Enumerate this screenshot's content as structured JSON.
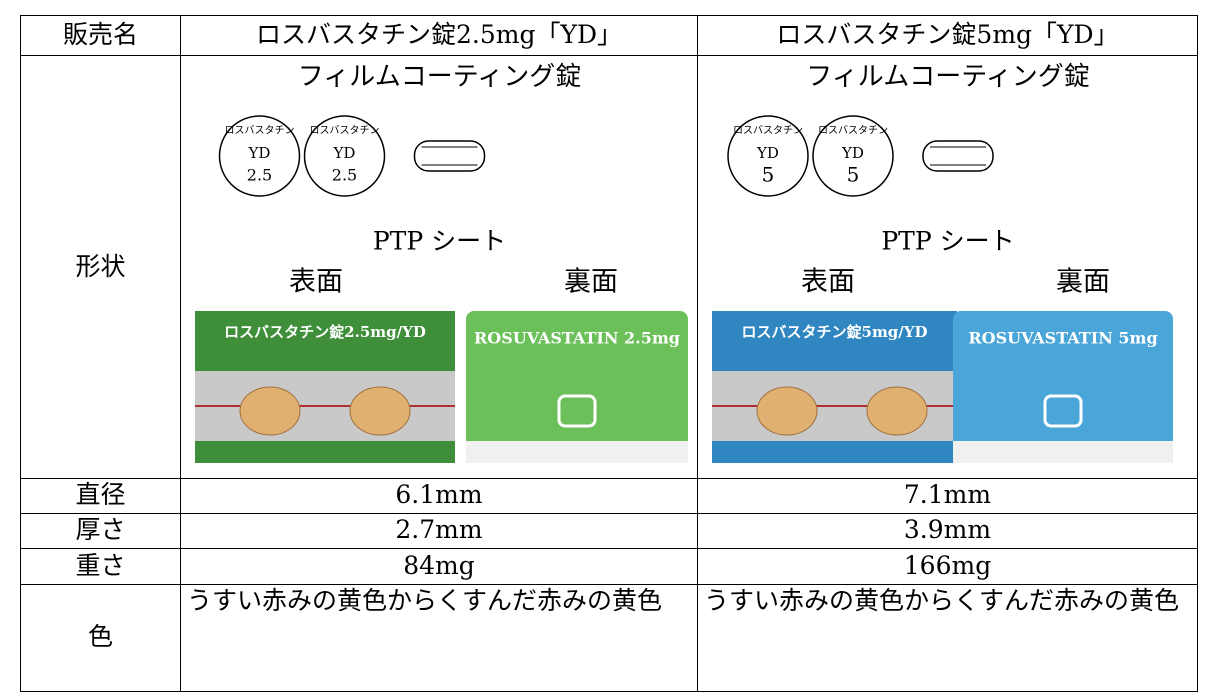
{
  "table": {
    "header": [
      "販売名",
      "ロスバスタチン錠2.5mg「YD」",
      "ロスバスタチン錠5mg「YD」"
    ],
    "shape": {
      "label": "形状",
      "products": [
        {
          "coating": "フィルムコーティング錠",
          "tablet_text": {
            "name": "ロスバスタチン",
            "mark": "YD",
            "strength": "2.5"
          },
          "ptp_title": "PTP シート",
          "front": "表面",
          "back": "裏面",
          "ptp_front_text": "ロスバスタチン錠2.5mg/YD",
          "ptp_back_text": "ROSUVASTATIN 2.5mg"
        },
        {
          "coating": "フィルムコーティング錠",
          "tablet_text": {
            "name": "ロスバスタチン",
            "mark": "YD",
            "strength": "5"
          },
          "ptp_title": "PTP シート",
          "front": "表面",
          "back": "裏面",
          "ptp_front_text": "ロスバスタチン錠5mg/YD",
          "ptp_back_text": "ROSUVASTATIN 5mg"
        }
      ]
    },
    "rows": [
      [
        "直径",
        "6.1mm",
        "7.1mm"
      ],
      [
        "厚さ",
        "2.7mm",
        "3.9mm"
      ],
      [
        "重さ",
        "84mg",
        "166mg"
      ],
      [
        "色",
        "うすい赤みの黄色からくすんだ赤みの黄色",
        "うすい赤みの黄色からくすんだ赤みの黄色"
      ]
    ]
  }
}
